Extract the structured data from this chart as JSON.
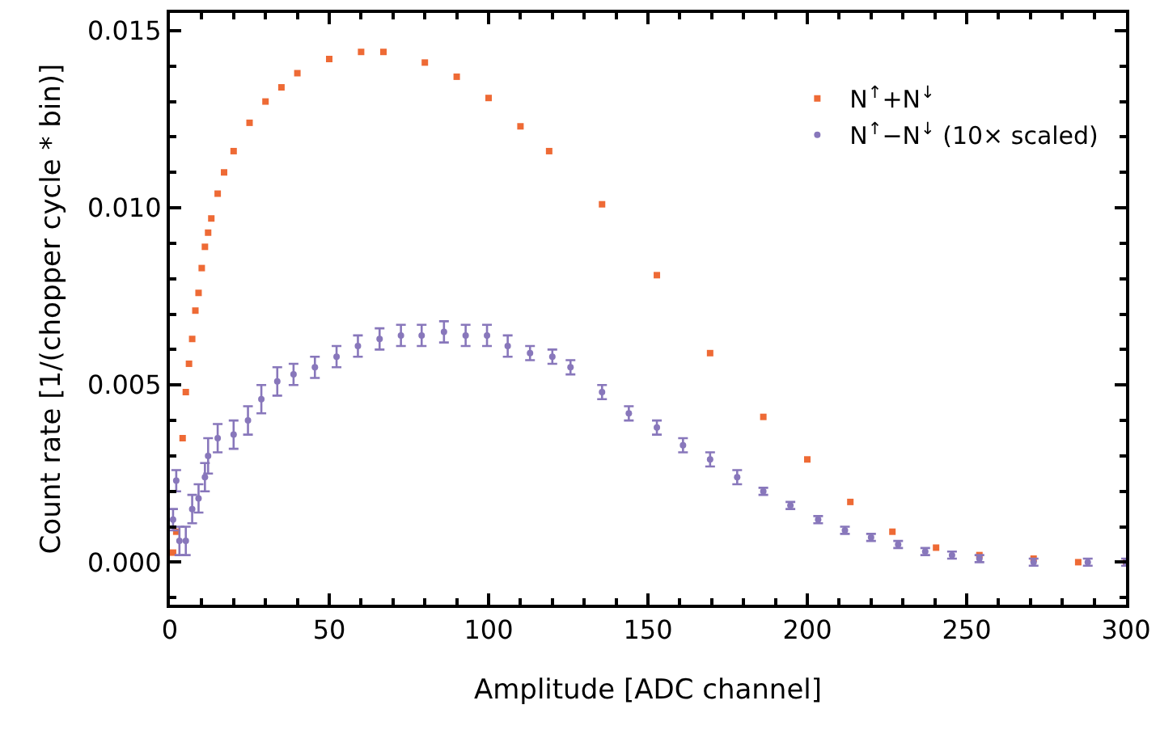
{
  "chart_data": {
    "type": "scatter",
    "xlabel": "Amplitude [ADC channel]",
    "ylabel": "Count rate [1/(chopper cycle * bin)]",
    "xlim": [
      0,
      300
    ],
    "xticks": [
      0,
      50,
      100,
      150,
      200,
      250,
      300
    ],
    "ylim": [
      -0.0012,
      0.0155
    ],
    "yticks": [
      {
        "value": 0,
        "label": "0.000"
      },
      {
        "value": 0.005,
        "label": "0.005"
      },
      {
        "value": 0.01,
        "label": "0.010"
      },
      {
        "value": 0.015,
        "label": "0.015"
      }
    ],
    "legend": "top right",
    "series": [
      {
        "name": "N$^{↑}$+N$^{↓}$",
        "color": "#ee6a35",
        "marker": "square",
        "x": [
          1,
          2,
          4,
          5,
          6,
          7,
          8,
          9,
          10,
          11,
          12,
          13,
          15,
          17,
          20,
          25,
          30,
          35,
          40,
          50,
          60,
          67,
          80,
          90,
          100,
          110,
          119,
          135.6,
          152.8,
          169.5,
          186.2,
          200,
          213.5,
          226.7,
          240.4,
          254,
          271,
          285,
          300
        ],
        "values": [
          0.00027,
          0.00086,
          0.0035,
          0.0048,
          0.0056,
          0.0063,
          0.0071,
          0.0076,
          0.0083,
          0.0089,
          0.0093,
          0.0097,
          0.0104,
          0.011,
          0.0116,
          0.0124,
          0.013,
          0.0134,
          0.0138,
          0.0142,
          0.0144,
          0.0144,
          0.0141,
          0.0137,
          0.0131,
          0.0123,
          0.0116,
          0.0101,
          0.0081,
          0.0059,
          0.0041,
          0.0029,
          0.0017,
          0.00086,
          0.00041,
          0.0002,
          0.0001,
          0.0,
          0.0
        ]
      },
      {
        "name": "N$^{↑}$−N$^{↓}$ (10× scaled)",
        "color": "#8877bb",
        "marker": "circle",
        "x": [
          1,
          2,
          3,
          5,
          7,
          9,
          11,
          12,
          15,
          20,
          24.5,
          28.7,
          33.7,
          38.8,
          45.5,
          52.3,
          59,
          65.8,
          72.5,
          79,
          86,
          92.8,
          99.5,
          106,
          113,
          120,
          125.7,
          135.6,
          144,
          152.8,
          161,
          169.5,
          178,
          186.2,
          194.7,
          203.4,
          211.8,
          220,
          228.5,
          237,
          245.4,
          254,
          271,
          288,
          300
        ],
        "values": [
          0.0012,
          0.0023,
          0.0006,
          0.0006,
          0.0015,
          0.0018,
          0.0024,
          0.003,
          0.0035,
          0.0036,
          0.004,
          0.0046,
          0.0051,
          0.0053,
          0.0055,
          0.0058,
          0.0061,
          0.0063,
          0.0064,
          0.0064,
          0.0065,
          0.0064,
          0.0064,
          0.0061,
          0.0059,
          0.0058,
          0.0055,
          0.0048,
          0.0042,
          0.0038,
          0.0033,
          0.0029,
          0.0024,
          0.002,
          0.0016,
          0.0012,
          0.0009,
          0.0007,
          0.0005,
          0.0003,
          0.0002,
          0.0001,
          0.0,
          0.0,
          0.0
        ],
        "errors": [
          0.0003,
          0.0003,
          0.0004,
          0.0004,
          0.0004,
          0.0004,
          0.0004,
          0.0005,
          0.0004,
          0.0004,
          0.0004,
          0.0004,
          0.0004,
          0.0003,
          0.0003,
          0.0003,
          0.0003,
          0.0003,
          0.0003,
          0.0003,
          0.0003,
          0.0003,
          0.0003,
          0.0003,
          0.0002,
          0.0002,
          0.0002,
          0.0002,
          0.0002,
          0.0002,
          0.0002,
          0.0002,
          0.0002,
          0.0001,
          0.0001,
          0.0001,
          0.0001,
          0.0001,
          0.0001,
          0.0001,
          0.0001,
          0.0001,
          0.0001,
          0.0001,
          0.0001
        ]
      }
    ]
  }
}
